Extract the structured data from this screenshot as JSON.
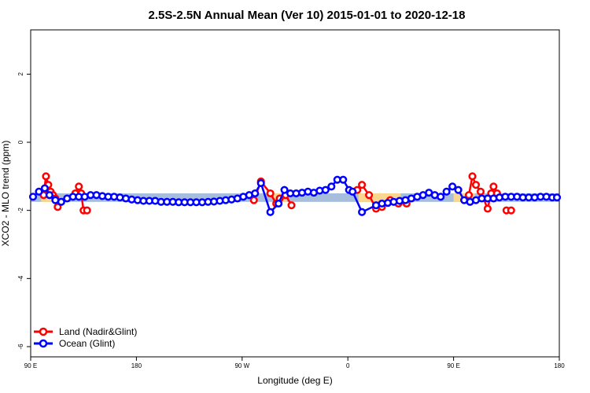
{
  "chart_data": {
    "type": "line",
    "title": "2.5S-2.5N Annual Mean (Ver 10)   2015-01-01 to 2020-12-18",
    "xlabel": "Longitude (deg E)",
    "ylabel": "XCO2 - MLO trend (ppm)",
    "xlim": [
      90,
      540
    ],
    "ylim": [
      -6.3,
      3.3
    ],
    "x_ticks": [
      {
        "value": 90,
        "label": "90 E"
      },
      {
        "value": 180,
        "label": "180"
      },
      {
        "value": 270,
        "label": "90 W"
      },
      {
        "value": 360,
        "label": "0"
      },
      {
        "value": 450,
        "label": "90 E"
      },
      {
        "value": 540,
        "label": "180"
      }
    ],
    "y_ticks": [
      {
        "value": 2,
        "label": "2"
      },
      {
        "value": 0,
        "label": "0"
      },
      {
        "value": -2,
        "label": "-2"
      },
      {
        "value": -4,
        "label": "-4"
      },
      {
        "value": -6,
        "label": "-6"
      }
    ],
    "reference_band": {
      "ymin": -1.75,
      "ymax": -1.5,
      "color": "#a6bddb"
    },
    "land_highlight_bands": [
      {
        "xmin": 99,
        "xmax": 112,
        "ymin": -1.75,
        "ymax": -1.5,
        "color": "#fad78c"
      },
      {
        "xmin": 297,
        "xmax": 308,
        "ymin": -1.75,
        "ymax": -1.5,
        "color": "#fad78c"
      },
      {
        "xmin": 369,
        "xmax": 405,
        "ymin": -1.75,
        "ymax": -1.5,
        "color": "#fad78c"
      },
      {
        "xmin": 450,
        "xmax": 468,
        "ymin": -1.75,
        "ymax": -1.5,
        "color": "#fad78c"
      }
    ],
    "legend_position": "bottom-left",
    "series": [
      {
        "name": "Land (Nadir&Glint)",
        "color": "#ff0000",
        "segments": [
          {
            "x": [
              101,
              103,
              105,
              107,
              109,
              111,
              113
            ],
            "y": [
              -1.55,
              -1.0,
              -1.25,
              -1.45,
              -1.55,
              -1.65,
              -1.9
            ]
          },
          {
            "x": [
              128,
              131,
              133,
              135,
              138
            ],
            "y": [
              -1.5,
              -1.3,
              -1.5,
              -2.0,
              -2.0
            ]
          },
          {
            "x": [
              280,
              286,
              294,
              299,
              302,
              307,
              312
            ],
            "y": [
              -1.7,
              -1.15,
              -1.5,
              -1.8,
              -1.65,
              -1.55,
              -1.85
            ]
          },
          {
            "x": [
              368,
              372,
              378,
              384,
              389,
              396,
              403,
              410
            ],
            "y": [
              -1.4,
              -1.25,
              -1.55,
              -1.95,
              -1.9,
              -1.7,
              -1.8,
              -1.8
            ]
          },
          {
            "x": [
              463,
              466,
              469,
              473,
              479,
              482,
              484,
              487
            ],
            "y": [
              -1.55,
              -1.0,
              -1.25,
              -1.45,
              -1.95,
              -1.5,
              -1.3,
              -1.5
            ]
          },
          {
            "x": [
              495,
              499
            ],
            "y": [
              -2.0,
              -2.0
            ]
          }
        ]
      },
      {
        "name": "Ocean (Glint)",
        "color": "#0000ff",
        "x": [
          92,
          97,
          102,
          106,
          111,
          116,
          121,
          126,
          131,
          136,
          141,
          146,
          151,
          156,
          161,
          166,
          171,
          176,
          181,
          186,
          191,
          196,
          201,
          206,
          211,
          216,
          221,
          226,
          231,
          236,
          241,
          246,
          251,
          256,
          261,
          266,
          271,
          276,
          281,
          286,
          294,
          301,
          306,
          311,
          316,
          321,
          326,
          331,
          336,
          341,
          346,
          351,
          356,
          361,
          364,
          372,
          384,
          389,
          394,
          399,
          404,
          409,
          414,
          419,
          424,
          429,
          434,
          439,
          444,
          449,
          454,
          459,
          464,
          469,
          474,
          479,
          484,
          489,
          494,
          499,
          504,
          509,
          514,
          519,
          524,
          529,
          534,
          538
        ],
        "y": [
          -1.6,
          -1.45,
          -1.35,
          -1.55,
          -1.7,
          -1.75,
          -1.65,
          -1.6,
          -1.6,
          -1.6,
          -1.55,
          -1.55,
          -1.58,
          -1.6,
          -1.6,
          -1.62,
          -1.65,
          -1.68,
          -1.7,
          -1.72,
          -1.72,
          -1.72,
          -1.75,
          -1.75,
          -1.75,
          -1.76,
          -1.76,
          -1.76,
          -1.76,
          -1.76,
          -1.75,
          -1.74,
          -1.72,
          -1.7,
          -1.68,
          -1.65,
          -1.6,
          -1.55,
          -1.5,
          -1.2,
          -2.05,
          -1.8,
          -1.4,
          -1.5,
          -1.5,
          -1.48,
          -1.45,
          -1.48,
          -1.42,
          -1.4,
          -1.3,
          -1.1,
          -1.1,
          -1.4,
          -1.45,
          -2.05,
          -1.85,
          -1.8,
          -1.78,
          -1.75,
          -1.72,
          -1.7,
          -1.65,
          -1.6,
          -1.55,
          -1.48,
          -1.55,
          -1.6,
          -1.45,
          -1.3,
          -1.4,
          -1.7,
          -1.75,
          -1.7,
          -1.65,
          -1.65,
          -1.65,
          -1.62,
          -1.6,
          -1.6,
          -1.6,
          -1.62,
          -1.62,
          -1.62,
          -1.6,
          -1.6,
          -1.62,
          -1.62
        ]
      }
    ]
  }
}
